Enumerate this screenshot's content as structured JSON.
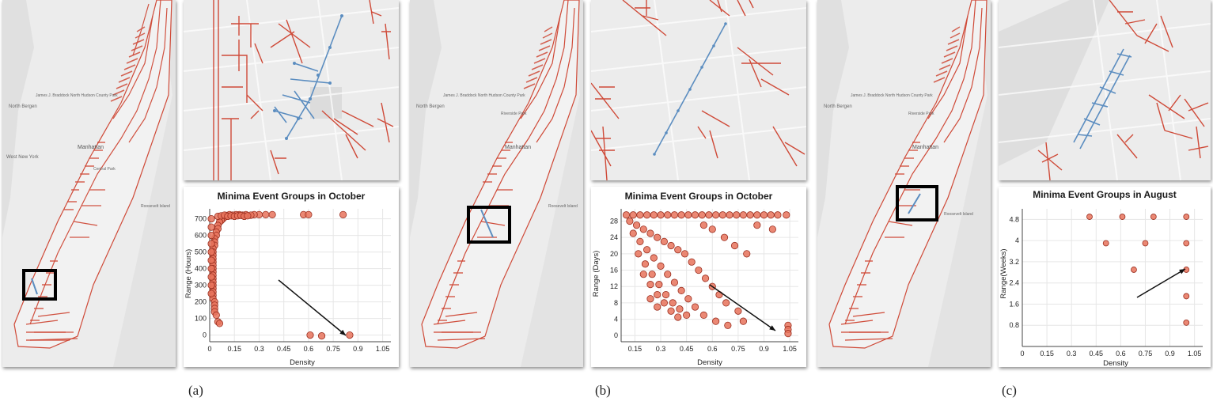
{
  "colors": {
    "edge": "#cf4a38",
    "highlight": "#5b8dc0",
    "point_fill": "#e8735c",
    "point_stroke": "#9a2e1f",
    "map_bg": "#ececec",
    "frame": "#000000"
  },
  "maps": {
    "a": {
      "city_label": "Manhattan",
      "area_labels": [
        "North Bergen",
        "West New York",
        "James J. Braddock North Hudson County Park",
        "Central Park",
        "Roosevelt Island"
      ]
    },
    "b": {
      "city_label": "Manhattan",
      "area_labels": [
        "North Bergen",
        "Riverside Park",
        "James J. Braddock North Hudson County Park",
        "Roosevelt Island"
      ]
    },
    "c": {
      "city_label": "Manhattan",
      "area_labels": [
        "North Bergen",
        "Riverside Park",
        "James J. Braddock North Hudson County Park",
        "Roosevelt Island"
      ]
    }
  },
  "captions": [
    "(a)",
    "(b)",
    "(c)"
  ],
  "chart_data": [
    {
      "type": "scatter",
      "title": "Minima Event Groups in October",
      "xlabel": "Density",
      "ylabel": "Range (Hours)",
      "xlim": [
        0,
        1.1
      ],
      "ylim": [
        -40,
        760
      ],
      "xticks": [
        "0",
        "0.15",
        "0.3",
        "0.45",
        "0.6",
        "0.75",
        "0.9",
        "1.05"
      ],
      "yticks": [
        "0",
        "100",
        "200",
        "300",
        "400",
        "500",
        "600",
        "700"
      ],
      "grid": true,
      "annotation": "arrow pointing to outlier at Density 0.85, Range 0",
      "points": [
        [
          0.85,
          0
        ],
        [
          0.61,
          0
        ],
        [
          0.68,
          -5
        ],
        [
          0.57,
          725
        ],
        [
          0.6,
          725
        ],
        [
          0.81,
          725
        ],
        [
          0.38,
          725
        ],
        [
          0.34,
          725
        ],
        [
          0.3,
          725
        ],
        [
          0.27,
          725
        ],
        [
          0.25,
          722
        ],
        [
          0.22,
          725
        ],
        [
          0.2,
          722
        ],
        [
          0.18,
          725
        ],
        [
          0.16,
          725
        ],
        [
          0.14,
          722
        ],
        [
          0.12,
          725
        ],
        [
          0.1,
          720
        ],
        [
          0.09,
          710
        ],
        [
          0.08,
          700
        ],
        [
          0.07,
          690
        ],
        [
          0.06,
          680
        ],
        [
          0.05,
          660
        ],
        [
          0.05,
          640
        ],
        [
          0.04,
          620
        ],
        [
          0.04,
          600
        ],
        [
          0.03,
          580
        ],
        [
          0.03,
          560
        ],
        [
          0.03,
          540
        ],
        [
          0.02,
          520
        ],
        [
          0.02,
          500
        ],
        [
          0.02,
          480
        ],
        [
          0.02,
          460
        ],
        [
          0.02,
          440
        ],
        [
          0.02,
          420
        ],
        [
          0.02,
          400
        ],
        [
          0.02,
          380
        ],
        [
          0.02,
          360
        ],
        [
          0.02,
          340
        ],
        [
          0.02,
          320
        ],
        [
          0.02,
          300
        ],
        [
          0.02,
          280
        ],
        [
          0.02,
          260
        ],
        [
          0.02,
          240
        ],
        [
          0.02,
          220
        ],
        [
          0.03,
          200
        ],
        [
          0.03,
          180
        ],
        [
          0.03,
          160
        ],
        [
          0.03,
          140
        ],
        [
          0.04,
          120
        ],
        [
          0.05,
          80
        ],
        [
          0.06,
          70
        ],
        [
          0.01,
          700
        ],
        [
          0.01,
          650
        ],
        [
          0.01,
          600
        ],
        [
          0.01,
          550
        ],
        [
          0.01,
          500
        ],
        [
          0.01,
          450
        ],
        [
          0.01,
          400
        ],
        [
          0.01,
          350
        ],
        [
          0.01,
          300
        ],
        [
          0.01,
          250
        ],
        [
          0.05,
          715
        ],
        [
          0.07,
          718
        ],
        [
          0.09,
          722
        ],
        [
          0.11,
          715
        ],
        [
          0.13,
          718
        ],
        [
          0.15,
          715
        ],
        [
          0.17,
          718
        ],
        [
          0.19,
          720
        ],
        [
          0.21,
          715
        ],
        [
          0.23,
          718
        ]
      ]
    },
    {
      "type": "scatter",
      "title": "Minima Event Groups in October",
      "xlabel": "Density",
      "ylabel": "Range (Days)",
      "xlim": [
        0.07,
        1.1
      ],
      "ylim": [
        -1.5,
        31
      ],
      "xticks": [
        "0.15",
        "0.3",
        "0.45",
        "0.6",
        "0.75",
        "0.9",
        "1.05"
      ],
      "yticks": [
        "0",
        "4",
        "8",
        "12",
        "16",
        "20",
        "24",
        "28"
      ],
      "grid": true,
      "annotation": "arrow pointing to group at Density 1.04, Range 0 to 2",
      "points": [
        [
          0.1,
          29.5
        ],
        [
          0.14,
          29.5
        ],
        [
          0.18,
          29.5
        ],
        [
          0.22,
          29.5
        ],
        [
          0.26,
          29.5
        ],
        [
          0.3,
          29.5
        ],
        [
          0.34,
          29.5
        ],
        [
          0.38,
          29.5
        ],
        [
          0.42,
          29.5
        ],
        [
          0.46,
          29.5
        ],
        [
          0.5,
          29.5
        ],
        [
          0.54,
          29.5
        ],
        [
          0.58,
          29.5
        ],
        [
          0.62,
          29.5
        ],
        [
          0.66,
          29.5
        ],
        [
          0.7,
          29.5
        ],
        [
          0.74,
          29.5
        ],
        [
          0.78,
          29.5
        ],
        [
          0.82,
          29.5
        ],
        [
          0.86,
          29.5
        ],
        [
          0.9,
          29.5
        ],
        [
          0.94,
          29.5
        ],
        [
          0.98,
          29.5
        ],
        [
          1.03,
          29.5
        ],
        [
          0.12,
          28
        ],
        [
          0.16,
          27
        ],
        [
          0.2,
          26
        ],
        [
          0.24,
          25
        ],
        [
          0.28,
          24
        ],
        [
          0.32,
          23
        ],
        [
          0.36,
          22
        ],
        [
          0.4,
          21
        ],
        [
          0.44,
          20
        ],
        [
          0.48,
          18
        ],
        [
          0.52,
          16
        ],
        [
          0.56,
          14
        ],
        [
          0.6,
          12
        ],
        [
          0.64,
          10
        ],
        [
          0.68,
          8
        ],
        [
          0.75,
          6
        ],
        [
          0.14,
          25
        ],
        [
          0.18,
          23
        ],
        [
          0.22,
          21
        ],
        [
          0.26,
          19
        ],
        [
          0.3,
          17
        ],
        [
          0.34,
          15
        ],
        [
          0.38,
          13
        ],
        [
          0.42,
          11
        ],
        [
          0.46,
          9
        ],
        [
          0.5,
          7
        ],
        [
          0.55,
          5
        ],
        [
          0.62,
          3.5
        ],
        [
          0.17,
          20
        ],
        [
          0.21,
          17.5
        ],
        [
          0.25,
          15
        ],
        [
          0.29,
          12.5
        ],
        [
          0.33,
          10
        ],
        [
          0.37,
          8
        ],
        [
          0.41,
          6.5
        ],
        [
          0.45,
          5
        ],
        [
          0.2,
          15
        ],
        [
          0.24,
          12.5
        ],
        [
          0.28,
          10
        ],
        [
          0.32,
          8
        ],
        [
          0.36,
          6
        ],
        [
          0.4,
          4.5
        ],
        [
          0.24,
          9
        ],
        [
          0.28,
          7
        ],
        [
          0.55,
          27
        ],
        [
          0.6,
          26
        ],
        [
          0.67,
          24
        ],
        [
          0.73,
          22
        ],
        [
          0.8,
          20
        ],
        [
          0.86,
          27
        ],
        [
          0.95,
          26
        ],
        [
          1.04,
          2.5
        ],
        [
          1.04,
          1.5
        ],
        [
          1.04,
          0.5
        ],
        [
          0.69,
          2.5
        ],
        [
          0.78,
          3.5
        ]
      ]
    },
    {
      "type": "scatter",
      "title": "Minima Event Groups in August",
      "xlabel": "Density",
      "ylabel": "Range(Weeks)",
      "xlim": [
        0,
        1.1
      ],
      "ylim": [
        0,
        5.2
      ],
      "xticks": [
        "0",
        "0.15",
        "0.3",
        "0.45",
        "0.6",
        "0.75",
        "0.9",
        "1.05"
      ],
      "yticks": [
        "0.8",
        "1.6",
        "2.4",
        "3.2",
        "4",
        "4.8"
      ],
      "grid": true,
      "annotation": "arrow pointing to point at Density 1.0, Range 2.9",
      "points": [
        [
          0.41,
          4.9
        ],
        [
          0.61,
          4.9
        ],
        [
          0.8,
          4.9
        ],
        [
          1.0,
          4.9
        ],
        [
          0.51,
          3.9
        ],
        [
          0.75,
          3.9
        ],
        [
          1.0,
          3.9
        ],
        [
          0.68,
          2.9
        ],
        [
          1.0,
          2.9
        ],
        [
          1.0,
          1.9
        ],
        [
          1.0,
          0.9
        ]
      ]
    }
  ]
}
